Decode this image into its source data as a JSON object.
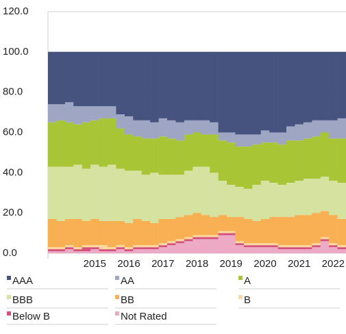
{
  "chart_data": {
    "type": "stacked-bar",
    "categories": [
      null,
      null,
      null,
      null,
      null,
      "2015",
      null,
      null,
      null,
      "2016",
      null,
      null,
      null,
      "2017",
      null,
      null,
      null,
      "2018",
      null,
      null,
      null,
      "2019",
      null,
      null,
      null,
      "2020",
      null,
      null,
      null,
      "2021",
      null,
      null,
      null,
      "2022",
      null
    ],
    "series": [
      {
        "name": "AAA",
        "color": "#46537f",
        "values": [
          26,
          26,
          25,
          27,
          27,
          27,
          27,
          27,
          31,
          32,
          34,
          34,
          35,
          33,
          34,
          35,
          34,
          34,
          34,
          35,
          40,
          40,
          41,
          41,
          41,
          39,
          40,
          40,
          37,
          36,
          35,
          34,
          34,
          34,
          33
        ]
      },
      {
        "name": "AA",
        "color": "#9ea6c3",
        "values": [
          9,
          8,
          10,
          9,
          8,
          7,
          6,
          6,
          7,
          9,
          8,
          9,
          8,
          9,
          9,
          9,
          7,
          6,
          7,
          6,
          4,
          5,
          6,
          6,
          5,
          6,
          5,
          6,
          7,
          8,
          8,
          8,
          6,
          9,
          10
        ]
      },
      {
        "name": "A",
        "color": "#a8c536",
        "values": [
          22,
          23,
          22,
          20,
          23,
          22,
          24,
          23,
          20,
          18,
          17,
          18,
          17,
          19,
          18,
          17,
          18,
          17,
          16,
          19,
          20,
          21,
          20,
          21,
          20,
          19,
          20,
          20,
          21,
          20,
          20,
          21,
          22,
          21,
          22
        ]
      },
      {
        "name": "BBB",
        "color": "#d6e2a0",
        "values": [
          26,
          27,
          26,
          27,
          26,
          27,
          27,
          28,
          26,
          26,
          24,
          23,
          25,
          22,
          22,
          21,
          22,
          23,
          24,
          22,
          17,
          16,
          15,
          15,
          18,
          19,
          17,
          16,
          17,
          17,
          18,
          17,
          17,
          17,
          18
        ]
      },
      {
        "name": "BB",
        "color": "#f9b052",
        "values": [
          14,
          13,
          13,
          14,
          12,
          13,
          12,
          13,
          12,
          12,
          13,
          12,
          11,
          12,
          11,
          11,
          11,
          11,
          10,
          9,
          8,
          7,
          12,
          12,
          11,
          12,
          13,
          14,
          14,
          15,
          15,
          15,
          13,
          14,
          13
        ]
      },
      {
        "name": "B",
        "color": "#fdd9a0",
        "values": [
          1,
          1,
          1,
          1,
          1,
          1,
          2,
          1,
          1,
          1,
          1,
          1,
          1,
          1,
          1,
          1,
          1,
          1,
          1,
          1,
          1,
          1,
          1,
          1,
          1,
          1,
          1,
          1,
          1,
          1,
          1,
          1,
          1,
          1,
          1
        ]
      },
      {
        "name": "Below B",
        "color": "#d3517a",
        "values": [
          1,
          1,
          1,
          1,
          2,
          1,
          1,
          1,
          1,
          1,
          1,
          1,
          1,
          1,
          1,
          1,
          1,
          1,
          1,
          1,
          1,
          1,
          1,
          1,
          1,
          1,
          1,
          1,
          1,
          1,
          1,
          1,
          1,
          1,
          1
        ]
      },
      {
        "name": "Not Rated",
        "color": "#ecaac5",
        "values": [
          1,
          1,
          2,
          1,
          1,
          2,
          1,
          1,
          2,
          1,
          2,
          2,
          2,
          3,
          4,
          5,
          6,
          7,
          7,
          7,
          9,
          9,
          4,
          3,
          3,
          3,
          3,
          2,
          2,
          2,
          2,
          3,
          6,
          3,
          2
        ]
      }
    ],
    "ylim": [
      0,
      120
    ],
    "yticks": [
      {
        "value": 0,
        "label": "0.0"
      },
      {
        "value": 20,
        "label": "20.0"
      },
      {
        "value": 40,
        "label": "40.0"
      },
      {
        "value": 60,
        "label": "60.0"
      },
      {
        "value": 80,
        "label": "80.0"
      },
      {
        "value": 100,
        "label": "100.0"
      },
      {
        "value": 120,
        "label": "120.0"
      }
    ],
    "grid": true
  }
}
